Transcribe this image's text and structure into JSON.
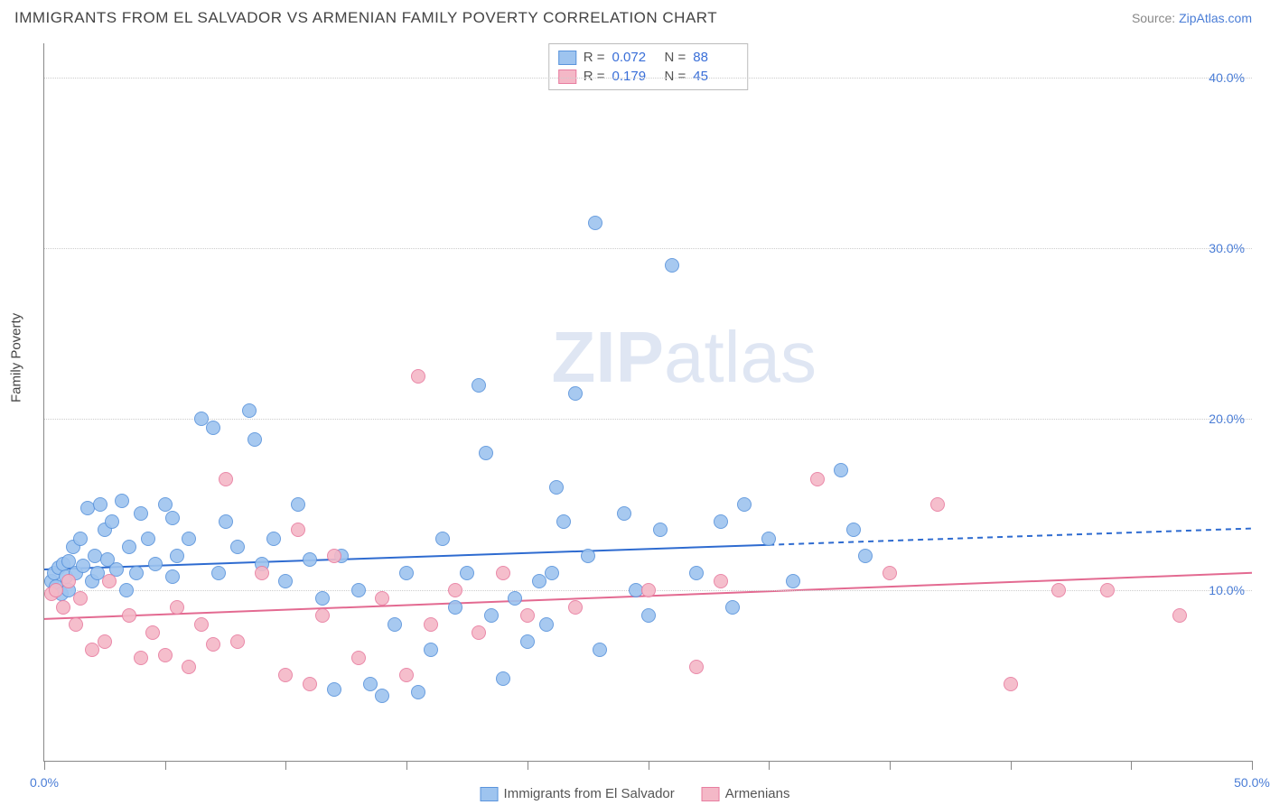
{
  "header": {
    "title": "IMMIGRANTS FROM EL SALVADOR VS ARMENIAN FAMILY POVERTY CORRELATION CHART",
    "source_prefix": "Source: ",
    "source_link": "ZipAtlas.com"
  },
  "chart": {
    "type": "scatter",
    "xlim": [
      0,
      50
    ],
    "ylim": [
      0,
      42
    ],
    "xticks": [
      0,
      5,
      10,
      15,
      20,
      25,
      30,
      35,
      40,
      45,
      50
    ],
    "yticks": [
      10,
      20,
      30,
      40
    ],
    "xtick_labels": {
      "0": "0.0%",
      "50": "50.0%"
    },
    "ytick_labels": {
      "10": "10.0%",
      "20": "20.0%",
      "30": "30.0%",
      "40": "40.0%"
    },
    "ylabel": "Family Poverty",
    "background_color": "#ffffff",
    "grid_color": "#cccccc",
    "axis_color": "#888888",
    "marker_radius": 8,
    "marker_opacity_fill": 0.35,
    "marker_border_width": 1.5,
    "series": [
      {
        "key": "elsalvador",
        "label": "Immigrants from El Salvador",
        "color_fill": "#9ec4ef",
        "color_stroke": "#5a94dc",
        "trend": {
          "y_start": 11.2,
          "y_end": 13.6,
          "solid_until_x": 30,
          "stroke": "#2e6bd0",
          "width": 2
        },
        "stats": {
          "R": "0.072",
          "N": "88"
        },
        "points": [
          [
            0.3,
            10.5
          ],
          [
            0.4,
            11.0
          ],
          [
            0.5,
            10.2
          ],
          [
            0.6,
            11.3
          ],
          [
            0.7,
            9.8
          ],
          [
            0.8,
            11.5
          ],
          [
            0.9,
            10.8
          ],
          [
            1.0,
            11.7
          ],
          [
            1.0,
            10.0
          ],
          [
            1.2,
            12.5
          ],
          [
            1.3,
            11.0
          ],
          [
            1.5,
            13.0
          ],
          [
            1.6,
            11.4
          ],
          [
            1.8,
            14.8
          ],
          [
            2.0,
            10.5
          ],
          [
            2.1,
            12.0
          ],
          [
            2.2,
            11.0
          ],
          [
            2.3,
            15.0
          ],
          [
            2.5,
            13.5
          ],
          [
            2.6,
            11.8
          ],
          [
            2.8,
            14.0
          ],
          [
            3.0,
            11.2
          ],
          [
            3.2,
            15.2
          ],
          [
            3.4,
            10.0
          ],
          [
            3.5,
            12.5
          ],
          [
            3.8,
            11.0
          ],
          [
            4.0,
            14.5
          ],
          [
            4.3,
            13.0
          ],
          [
            4.6,
            11.5
          ],
          [
            5.0,
            15.0
          ],
          [
            5.3,
            10.8
          ],
          [
            5.3,
            14.2
          ],
          [
            5.5,
            12.0
          ],
          [
            6.0,
            13.0
          ],
          [
            6.5,
            20.0
          ],
          [
            7.0,
            19.5
          ],
          [
            7.2,
            11.0
          ],
          [
            7.5,
            14.0
          ],
          [
            8.0,
            12.5
          ],
          [
            8.5,
            20.5
          ],
          [
            8.7,
            18.8
          ],
          [
            9.0,
            11.5
          ],
          [
            9.5,
            13.0
          ],
          [
            10.0,
            10.5
          ],
          [
            10.5,
            15.0
          ],
          [
            11.0,
            11.8
          ],
          [
            11.5,
            9.5
          ],
          [
            12.0,
            4.2
          ],
          [
            12.3,
            12.0
          ],
          [
            13.0,
            10.0
          ],
          [
            13.5,
            4.5
          ],
          [
            14.0,
            3.8
          ],
          [
            14.5,
            8.0
          ],
          [
            15.0,
            11.0
          ],
          [
            15.5,
            4.0
          ],
          [
            16.0,
            6.5
          ],
          [
            16.5,
            13.0
          ],
          [
            17.0,
            9.0
          ],
          [
            17.5,
            11.0
          ],
          [
            18.0,
            22.0
          ],
          [
            18.3,
            18.0
          ],
          [
            18.5,
            8.5
          ],
          [
            19.0,
            4.8
          ],
          [
            19.5,
            9.5
          ],
          [
            20.0,
            7.0
          ],
          [
            20.5,
            10.5
          ],
          [
            20.8,
            8.0
          ],
          [
            21.0,
            11.0
          ],
          [
            21.2,
            16.0
          ],
          [
            21.5,
            14.0
          ],
          [
            22.0,
            21.5
          ],
          [
            22.5,
            12.0
          ],
          [
            22.8,
            31.5
          ],
          [
            23.0,
            6.5
          ],
          [
            24.0,
            14.5
          ],
          [
            24.5,
            10.0
          ],
          [
            25.0,
            8.5
          ],
          [
            25.5,
            13.5
          ],
          [
            26.0,
            29.0
          ],
          [
            27.0,
            11.0
          ],
          [
            28.0,
            14.0
          ],
          [
            28.5,
            9.0
          ],
          [
            29.0,
            15.0
          ],
          [
            30.0,
            13.0
          ],
          [
            31.0,
            10.5
          ],
          [
            33.0,
            17.0
          ],
          [
            33.5,
            13.5
          ],
          [
            34.0,
            12.0
          ]
        ]
      },
      {
        "key": "armenians",
        "label": "Armenians",
        "color_fill": "#f4b8c7",
        "color_stroke": "#e87da0",
        "trend": {
          "y_start": 8.3,
          "y_end": 11.0,
          "solid_until_x": 50,
          "stroke": "#e36a91",
          "width": 2
        },
        "stats": {
          "R": "0.179",
          "N": "45"
        },
        "points": [
          [
            0.3,
            9.8
          ],
          [
            0.5,
            10.0
          ],
          [
            0.8,
            9.0
          ],
          [
            1.0,
            10.5
          ],
          [
            1.3,
            8.0
          ],
          [
            1.5,
            9.5
          ],
          [
            2.0,
            6.5
          ],
          [
            2.5,
            7.0
          ],
          [
            2.7,
            10.5
          ],
          [
            3.5,
            8.5
          ],
          [
            4.0,
            6.0
          ],
          [
            4.5,
            7.5
          ],
          [
            5.0,
            6.2
          ],
          [
            5.5,
            9.0
          ],
          [
            6.0,
            5.5
          ],
          [
            6.5,
            8.0
          ],
          [
            7.0,
            6.8
          ],
          [
            7.5,
            16.5
          ],
          [
            8.0,
            7.0
          ],
          [
            9.0,
            11.0
          ],
          [
            10.0,
            5.0
          ],
          [
            10.5,
            13.5
          ],
          [
            11.0,
            4.5
          ],
          [
            11.5,
            8.5
          ],
          [
            12.0,
            12.0
          ],
          [
            13.0,
            6.0
          ],
          [
            14.0,
            9.5
          ],
          [
            15.0,
            5.0
          ],
          [
            15.5,
            22.5
          ],
          [
            16.0,
            8.0
          ],
          [
            17.0,
            10.0
          ],
          [
            18.0,
            7.5
          ],
          [
            19.0,
            11.0
          ],
          [
            20.0,
            8.5
          ],
          [
            22.0,
            9.0
          ],
          [
            25.0,
            10.0
          ],
          [
            27.0,
            5.5
          ],
          [
            28.0,
            10.5
          ],
          [
            32.0,
            16.5
          ],
          [
            35.0,
            11.0
          ],
          [
            37.0,
            15.0
          ],
          [
            40.0,
            4.5
          ],
          [
            42.0,
            10.0
          ],
          [
            44.0,
            10.0
          ],
          [
            47.0,
            8.5
          ]
        ]
      }
    ],
    "legend_top": {
      "R_label": "R =",
      "N_label": "N ="
    },
    "watermark": {
      "text_bold": "ZIP",
      "text_light": "atlas",
      "color": "#cfd9ee"
    }
  }
}
